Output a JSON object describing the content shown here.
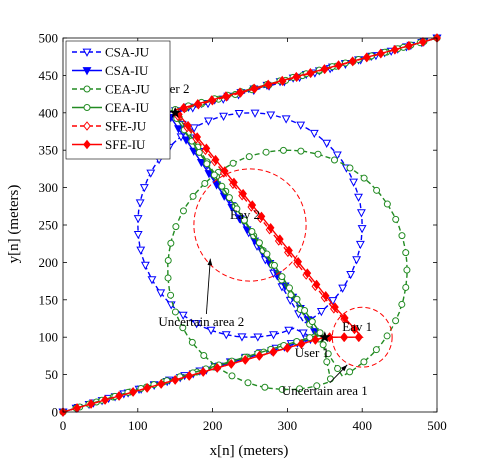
{
  "chart_data": {
    "type": "line",
    "title": "",
    "xlabel": "x[n] (meters)",
    "ylabel": "y[n] (meters)",
    "xlim": [
      0,
      500
    ],
    "ylim": [
      0,
      500
    ],
    "xticks": [
      0,
      100,
      200,
      300,
      400,
      500
    ],
    "yticks": [
      0,
      50,
      100,
      150,
      200,
      250,
      300,
      350,
      400,
      450,
      500
    ],
    "grid": false,
    "legend_position": "top-left",
    "series": [
      {
        "name": "CSA-JU",
        "color": "#0000ff",
        "line_style": "dashed",
        "marker": "triangle-down-open",
        "kind": "circle_with_tails",
        "center": [
          250,
          250
        ],
        "radius": 150,
        "tail_in": [
          [
            0,
            0
          ],
          [
            333,
            100
          ]
        ],
        "tail_out": [
          [
            150,
            400
          ],
          [
            500,
            500
          ]
        ]
      },
      {
        "name": "CSA-IU",
        "color": "#0000ff",
        "line_style": "solid",
        "marker": "triangle-down-filled",
        "points": [
          [
            0,
            0
          ],
          [
            340,
            100
          ],
          [
            330,
            120
          ],
          [
            140,
            400
          ],
          [
            500,
            500
          ]
        ]
      },
      {
        "name": "CEA-JU",
        "color": "#228b22",
        "line_style": "dashed",
        "marker": "circle-open",
        "kind": "circle_with_tails",
        "center": [
          300,
          190
        ],
        "radius": 160,
        "tail_in": [
          [
            0,
            0
          ],
          [
            345,
            103
          ]
        ],
        "tail_out": [
          [
            150,
            402
          ],
          [
            500,
            500
          ]
        ]
      },
      {
        "name": "CEA-IU",
        "color": "#228b22",
        "line_style": "solid",
        "marker": "circle-open",
        "points": [
          [
            0,
            0
          ],
          [
            345,
            104
          ],
          [
            320,
            140
          ],
          [
            145,
            403
          ],
          [
            500,
            500
          ]
        ]
      },
      {
        "name": "SFE-JU",
        "color": "#ff0000",
        "line_style": "dashed",
        "marker": "diamond-open",
        "points": [
          [
            0,
            0
          ],
          [
            350,
            100
          ],
          [
            400,
            100
          ],
          [
            360,
            140
          ],
          [
            150,
            400
          ],
          [
            160,
            405
          ],
          [
            500,
            500
          ]
        ]
      },
      {
        "name": "SFE-IU",
        "color": "#ff0000",
        "line_style": "solid",
        "marker": "diamond-filled",
        "points": [
          [
            0,
            0
          ],
          [
            350,
            100
          ],
          [
            400,
            100
          ],
          [
            362,
            142
          ],
          [
            150,
            404
          ],
          [
            162,
            407
          ],
          [
            500,
            500
          ]
        ]
      }
    ],
    "users": [
      {
        "label": "User 1",
        "x": 350,
        "y": 100
      },
      {
        "label": "User 2",
        "x": 150,
        "y": 400
      }
    ],
    "eavesdroppers": [
      {
        "label": "Eav 1",
        "x": 400,
        "y": 100,
        "radius": 40
      },
      {
        "label": "Eav 2",
        "x": 250,
        "y": 250,
        "radius": 75
      }
    ],
    "annotations": [
      {
        "text": "Uncertain area 2",
        "x": 185,
        "y": 115,
        "arrow_to": [
          197,
          205
        ]
      },
      {
        "text": "Uncertain area 1",
        "x": 350,
        "y": 23,
        "arrow_to": [
          380,
          63
        ]
      }
    ]
  }
}
